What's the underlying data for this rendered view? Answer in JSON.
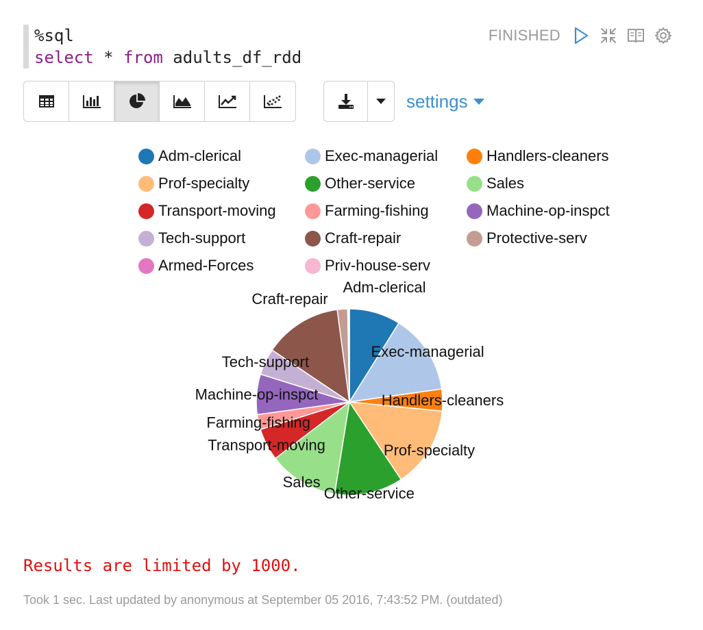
{
  "editor": {
    "line1": "%sql",
    "line2_kw1": "select",
    "line2_mid": " * ",
    "line2_kw2": "from",
    "line2_rest": " adults_df_rdd"
  },
  "status": {
    "text": "FINISHED",
    "icons": [
      "play-icon",
      "collapse-icon",
      "book-icon",
      "gear-icon"
    ]
  },
  "toolbar": {
    "buttons": [
      {
        "name": "table",
        "icon": "table-icon",
        "active": false
      },
      {
        "name": "bar",
        "icon": "bar-chart-icon",
        "active": false
      },
      {
        "name": "pie",
        "icon": "pie-chart-icon",
        "active": true
      },
      {
        "name": "area",
        "icon": "area-chart-icon",
        "active": false
      },
      {
        "name": "line",
        "icon": "line-chart-icon",
        "active": false
      },
      {
        "name": "scatter",
        "icon": "scatter-chart-icon",
        "active": false
      }
    ],
    "download_icon": "download-icon",
    "caret_icon": "caret-down-icon",
    "settings_label": "settings"
  },
  "chart_data": {
    "type": "pie",
    "title": "",
    "categories": [
      "Adm-clerical",
      "Exec-managerial",
      "Handlers-cleaners",
      "Prof-specialty",
      "Other-service",
      "Sales",
      "Transport-moving",
      "Farming-fishing",
      "Machine-op-inspct",
      "Tech-support",
      "Craft-repair",
      "Protective-serv",
      "Armed-Forces",
      "Priv-house-serv"
    ],
    "values": [
      8.9,
      13.9,
      3.8,
      14.1,
      11.9,
      12.1,
      5.6,
      2.6,
      7.0,
      4.6,
      13.5,
      1.8,
      0.1,
      0.2
    ],
    "colors": [
      "#1f77b4",
      "#aec7e8",
      "#ff7f0e",
      "#ffbb78",
      "#2ca02c",
      "#98df8a",
      "#d62728",
      "#ff9896",
      "#9467bd",
      "#c5b0d5",
      "#8c564b",
      "#c49c94",
      "#e377c2",
      "#f7b6d2"
    ],
    "legend_position": "top",
    "slice_labels": true
  },
  "messages": {
    "limit": "Results are limited by 1000.",
    "footer": "Took 1 sec. Last updated by anonymous at September 05 2016, 7:43:52 PM. (outdated)"
  }
}
